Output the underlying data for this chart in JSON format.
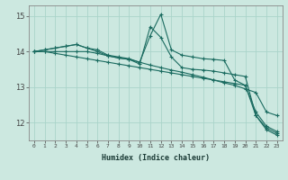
{
  "xlabel": "Humidex (Indice chaleur)",
  "bg_color": "#cce8e0",
  "grid_color": "#aad4ca",
  "line_color": "#1a6b60",
  "x_values": [
    0,
    1,
    2,
    3,
    4,
    5,
    6,
    7,
    8,
    9,
    10,
    11,
    12,
    13,
    14,
    15,
    16,
    17,
    18,
    19,
    20,
    21,
    22,
    23
  ],
  "series1": [
    14.0,
    14.05,
    14.1,
    14.15,
    14.2,
    14.1,
    14.05,
    13.9,
    13.85,
    13.8,
    13.7,
    14.45,
    15.05,
    14.05,
    13.9,
    13.85,
    13.8,
    13.78,
    13.75,
    13.2,
    13.05,
    12.2,
    11.85,
    11.7
  ],
  "series2": [
    14.0,
    14.05,
    14.1,
    14.15,
    14.2,
    14.1,
    14.0,
    13.88,
    13.82,
    13.78,
    13.65,
    14.7,
    14.4,
    13.85,
    13.55,
    13.5,
    13.48,
    13.45,
    13.4,
    13.35,
    13.3,
    12.2,
    11.8,
    11.65
  ],
  "series3": [
    14.0,
    14.0,
    14.0,
    14.0,
    14.0,
    14.0,
    13.95,
    13.88,
    13.82,
    13.78,
    13.7,
    13.62,
    13.55,
    13.48,
    13.42,
    13.35,
    13.28,
    13.2,
    13.12,
    13.05,
    12.95,
    12.85,
    12.3,
    12.2
  ],
  "series4": [
    14.0,
    14.0,
    13.95,
    13.9,
    13.85,
    13.8,
    13.75,
    13.7,
    13.65,
    13.6,
    13.55,
    13.5,
    13.45,
    13.4,
    13.35,
    13.3,
    13.25,
    13.2,
    13.15,
    13.1,
    13.05,
    12.3,
    11.9,
    11.75
  ],
  "ylim": [
    11.5,
    15.3
  ],
  "yticks": [
    12,
    13,
    14,
    15
  ],
  "xticks": [
    0,
    1,
    2,
    3,
    4,
    5,
    6,
    7,
    8,
    9,
    10,
    11,
    12,
    13,
    14,
    15,
    16,
    17,
    18,
    19,
    20,
    21,
    22,
    23
  ]
}
